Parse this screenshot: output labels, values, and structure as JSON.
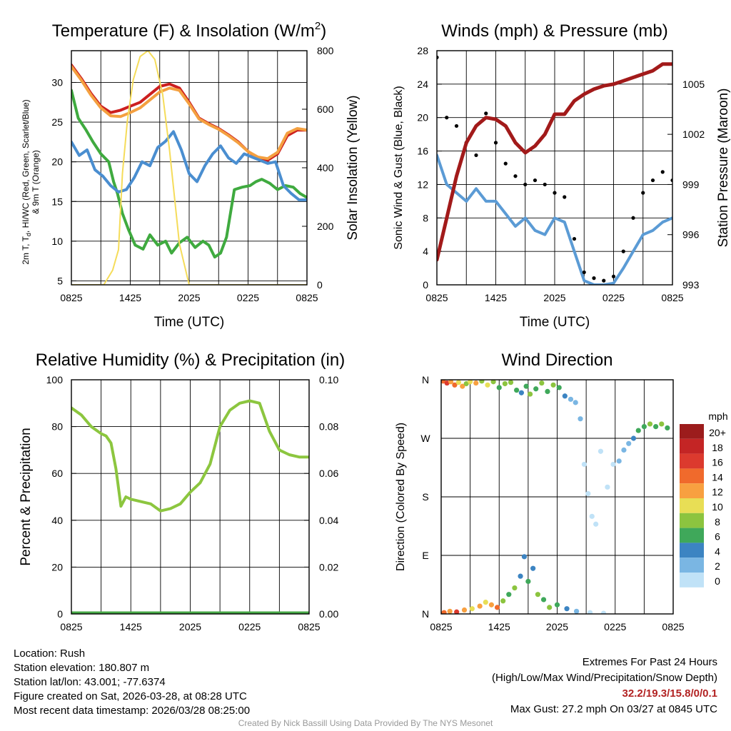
{
  "colors": {
    "temp_red": "#cc1f1f",
    "temp_orange": "#f4a040",
    "temp_green": "#3faa3f",
    "temp_blue": "#4a8ed0",
    "insolation_yellow": "#f5dc5a",
    "wind_blue": "#5b9bd5",
    "gust_black": "#000000",
    "pressure_maroon": "#a21a1a",
    "rh_green": "#8cc63f",
    "precip_green": "#46a846"
  },
  "chart_data": [
    {
      "id": "temperature",
      "type": "line",
      "title": "Temperature (F) & Insolation (W/m",
      "title_sup": "2",
      "title_end": ")",
      "xlabel": "Time (UTC)",
      "ylabel_line1": "2m T, T",
      "ylabel_sub": "d",
      "ylabel_line1_end": ", HI/WC (Red, Green, Scarlet/Blue)",
      "ylabel_line2": "& 9m T (Orange)",
      "y2label": "Solar Insolation (Yellow)",
      "x_ticks": [
        "0825",
        "1425",
        "2025",
        "0225",
        "0825"
      ],
      "xlim": [
        0,
        24
      ],
      "ylim": [
        4.5,
        34
      ],
      "yticks": [
        5,
        10,
        15,
        20,
        25,
        30
      ],
      "y2lim": [
        0,
        800
      ],
      "y2ticks": [
        0,
        200,
        400,
        600,
        800
      ],
      "series": [
        {
          "name": "2m T (Red)",
          "axis": "left",
          "color": "temp_red",
          "x": [
            0,
            1,
            2,
            3,
            4,
            5,
            6,
            7,
            8,
            9,
            10,
            11,
            12,
            13,
            14,
            15,
            16,
            17,
            18,
            19,
            20,
            21,
            22,
            23,
            24
          ],
          "values": [
            32.2,
            30.5,
            28.6,
            27,
            26.2,
            26.5,
            27,
            27.5,
            28.5,
            29.5,
            29.8,
            29.3,
            27.5,
            25.5,
            24.8,
            24.2,
            23.4,
            22.5,
            21.3,
            20.5,
            20.2,
            21,
            23.3,
            24,
            24
          ]
        },
        {
          "name": "9m T (Orange)",
          "axis": "left",
          "color": "temp_orange",
          "x": [
            0,
            1,
            2,
            3,
            4,
            5,
            6,
            7,
            8,
            9,
            10,
            11,
            12,
            13,
            14,
            15,
            16,
            17,
            18,
            19,
            20,
            21,
            22,
            23,
            24
          ],
          "values": [
            32,
            30.3,
            28.4,
            26.8,
            25.8,
            25.7,
            26.2,
            26.8,
            27.8,
            28.8,
            29.3,
            29,
            27.3,
            25.4,
            24.7,
            24.1,
            23.3,
            22.4,
            21.3,
            20.6,
            20.4,
            21.2,
            23.6,
            24.2,
            24
          ]
        },
        {
          "name": "Td (Green)",
          "axis": "left",
          "color": "temp_green",
          "x": [
            0,
            0.7,
            1.5,
            2.2,
            3,
            3.8,
            4.3,
            4.7,
            5.2,
            5.8,
            6.5,
            7.3,
            8,
            8.8,
            9.6,
            10.2,
            11,
            11.8,
            12.6,
            13.4,
            14,
            14.6,
            15.2,
            15.8,
            16.6,
            17.4,
            18.2,
            18.8,
            19.4,
            20.2,
            21,
            21.8,
            22.6,
            23.3,
            24
          ],
          "values": [
            29,
            25.5,
            24,
            22.5,
            21,
            20,
            17.5,
            16,
            13.5,
            11.5,
            9.5,
            9,
            10.8,
            9.5,
            10,
            8.5,
            9.8,
            10.5,
            9.2,
            10,
            9.5,
            8,
            8.5,
            10.5,
            16.5,
            16.8,
            17,
            17.5,
            17.8,
            17.3,
            16.5,
            17,
            16.8,
            16,
            15.5
          ]
        },
        {
          "name": "HI/WC (Blue)",
          "axis": "left",
          "color": "temp_blue",
          "x": [
            0,
            0.8,
            1.6,
            2.4,
            3.2,
            4,
            4.8,
            5.6,
            6.4,
            7.2,
            8,
            8.8,
            9.6,
            10.4,
            11.2,
            12,
            12.8,
            13.6,
            14.4,
            15.2,
            16,
            16.8,
            17.6,
            18.4,
            19.2,
            20,
            20.8,
            21.6,
            22.4,
            23.2,
            24
          ],
          "values": [
            22.5,
            20.8,
            21.5,
            19,
            18.2,
            17,
            16.2,
            16.5,
            18,
            20,
            19.5,
            21.8,
            22.6,
            23.8,
            21.5,
            18.5,
            17.5,
            19.5,
            21,
            22,
            20.5,
            19.8,
            21,
            20.6,
            20.2,
            19.8,
            20,
            17,
            16,
            15.2,
            15.2
          ]
        },
        {
          "name": "Solar Insolation (Yellow)",
          "axis": "right",
          "color": "insolation_yellow",
          "x": [
            0,
            3.3,
            4.2,
            4.8,
            5.2,
            5.7,
            6.3,
            7,
            7.8,
            8.5,
            9.3,
            10,
            11,
            12,
            13,
            14,
            15,
            16,
            17,
            18,
            19,
            20,
            21,
            22,
            23,
            24
          ],
          "values": [
            0,
            0,
            50,
            120,
            380,
            560,
            700,
            780,
            800,
            770,
            650,
            460,
            140,
            0,
            0,
            0,
            0,
            0,
            0,
            0,
            0,
            0,
            0,
            0,
            0,
            0
          ]
        }
      ]
    },
    {
      "id": "winds",
      "type": "line",
      "title": "Winds (mph) & Pressure (mb)",
      "xlabel": "Time (UTC)",
      "ylabel": "Sonic Wind & Gust (Blue, Black)",
      "y2label": "Station Pressure (Maroon)",
      "x_ticks": [
        "0825",
        "1425",
        "2025",
        "0225",
        "0825"
      ],
      "xlim": [
        0,
        24
      ],
      "ylim": [
        0,
        28
      ],
      "yticks": [
        0,
        4,
        8,
        12,
        16,
        20,
        24,
        28
      ],
      "y2lim": [
        993,
        1007
      ],
      "y2ticks": [
        993,
        996,
        999,
        1002,
        1005
      ],
      "series": [
        {
          "name": "Sonic Wind (Blue)",
          "axis": "left",
          "color": "wind_blue",
          "x": [
            0,
            1,
            2,
            3,
            4,
            5,
            6,
            7,
            8,
            9,
            10,
            11,
            12,
            13,
            14,
            15,
            16,
            17,
            18,
            19,
            20,
            21,
            22,
            23,
            24
          ],
          "values": [
            15.5,
            12,
            11,
            10,
            11.5,
            10,
            10,
            8.5,
            7,
            8,
            6.5,
            6,
            8,
            7.5,
            4,
            0.5,
            0,
            0,
            0.2,
            2,
            4,
            6,
            6.5,
            7.5,
            8
          ]
        },
        {
          "name": "Gust (Black)",
          "axis": "left",
          "color": "gust_black",
          "style": "points",
          "x": [
            0,
            1,
            2,
            3,
            4,
            5,
            6,
            7,
            8,
            9,
            10,
            11,
            12,
            13,
            14,
            15,
            16,
            17,
            18,
            19,
            20,
            21,
            22,
            23,
            24
          ],
          "values": [
            27.2,
            20,
            19,
            17,
            15.5,
            20.5,
            17,
            14.5,
            13,
            12,
            12.5,
            12,
            11,
            10.5,
            5.5,
            1.5,
            0.8,
            0.5,
            1,
            4,
            8,
            11,
            12.5,
            13.5,
            12.5
          ]
        },
        {
          "name": "Station Pressure (Maroon)",
          "axis": "right",
          "color": "pressure_maroon",
          "x": [
            0,
            1,
            2,
            3,
            4,
            5,
            6,
            7,
            8,
            9,
            10,
            11,
            12,
            13,
            14,
            15,
            16,
            17,
            18,
            19,
            20,
            21,
            22,
            23,
            24
          ],
          "values": [
            994.5,
            997,
            999.5,
            1001.5,
            1002.5,
            1003,
            1002.9,
            1002.5,
            1001.5,
            1000.9,
            1001.3,
            1002,
            1003.2,
            1003.2,
            1004,
            1004.4,
            1004.7,
            1004.9,
            1005,
            1005.2,
            1005.4,
            1005.6,
            1005.8,
            1006.2,
            1006.2
          ]
        }
      ]
    },
    {
      "id": "humidity",
      "type": "line",
      "title": "Relative Humidity (%) & Precipitation (in)",
      "ylabel": "Percent & Precipitation",
      "x_ticks": [
        "0825",
        "1425",
        "2025",
        "0225",
        "0825"
      ],
      "xlim": [
        0,
        24
      ],
      "ylim": [
        0,
        100
      ],
      "yticks": [
        0,
        20,
        40,
        60,
        80,
        100
      ],
      "y2lim": [
        0,
        0.1
      ],
      "y2ticks": [
        "0.00",
        "0.02",
        "0.04",
        "0.06",
        "0.08",
        "0.10"
      ],
      "series": [
        {
          "name": "Relative Humidity",
          "axis": "left",
          "color": "rh_green",
          "x": [
            0,
            1,
            2,
            3,
            3.5,
            4,
            4.5,
            5,
            5.5,
            6,
            7,
            8,
            9,
            10,
            11,
            12,
            13,
            14,
            15,
            16,
            17,
            18,
            19,
            20,
            21,
            22,
            23,
            24
          ],
          "values": [
            88,
            85,
            80,
            77,
            76,
            73,
            62,
            46,
            50,
            49,
            48,
            47,
            44,
            45,
            47,
            52,
            56,
            64,
            80,
            87,
            90,
            91,
            90,
            78,
            70,
            68,
            67,
            67
          ]
        },
        {
          "name": "Precipitation",
          "axis": "right",
          "color": "precip_green",
          "x": [
            0,
            24
          ],
          "values": [
            0,
            0
          ]
        }
      ]
    },
    {
      "id": "direction",
      "type": "scatter",
      "title": "Wind Direction",
      "ylabel": "Direction (Colored By Speed)",
      "x_ticks": [
        "0825",
        "1425",
        "2025",
        "0225",
        "0825"
      ],
      "xlim": [
        0,
        24
      ],
      "ylim": [
        0,
        360
      ],
      "y_tick_labels": [
        "N",
        "E",
        "S",
        "W",
        "N"
      ],
      "legend_title": "mph",
      "legend_labels": [
        "20+",
        "18",
        "16",
        "14",
        "12",
        "10",
        "8",
        "6",
        "4",
        "2",
        "0"
      ],
      "legend_colors": [
        "#9c1c1c",
        "#c42525",
        "#dc3a2e",
        "#f06a2c",
        "#f8a040",
        "#e8de55",
        "#8cc43f",
        "#3fa85a",
        "#3c84c2",
        "#7ab6e3",
        "#c0e2f7"
      ],
      "points": [
        {
          "x": 0.2,
          "dir": 358,
          "spd": 14
        },
        {
          "x": 0.6,
          "dir": 355,
          "spd": 16
        },
        {
          "x": 1.0,
          "dir": 357,
          "spd": 12
        },
        {
          "x": 1.4,
          "dir": 352,
          "spd": 14
        },
        {
          "x": 1.8,
          "dir": 356,
          "spd": 10
        },
        {
          "x": 2.2,
          "dir": 350,
          "spd": 12
        },
        {
          "x": 2.6,
          "dir": 354,
          "spd": 8
        },
        {
          "x": 3.0,
          "dir": 357,
          "spd": 10
        },
        {
          "x": 3.6,
          "dir": 355,
          "spd": 12
        },
        {
          "x": 4.2,
          "dir": 358,
          "spd": 8
        },
        {
          "x": 4.8,
          "dir": 352,
          "spd": 10
        },
        {
          "x": 5.4,
          "dir": 357,
          "spd": 8
        },
        {
          "x": 6.0,
          "dir": 348,
          "spd": 6
        },
        {
          "x": 6.6,
          "dir": 354,
          "spd": 8
        },
        {
          "x": 7.2,
          "dir": 356,
          "spd": 8
        },
        {
          "x": 7.8,
          "dir": 344,
          "spd": 6
        },
        {
          "x": 8.3,
          "dir": 340,
          "spd": 4
        },
        {
          "x": 8.8,
          "dir": 350,
          "spd": 6
        },
        {
          "x": 9.2,
          "dir": 338,
          "spd": 8
        },
        {
          "x": 9.8,
          "dir": 346,
          "spd": 6
        },
        {
          "x": 10.4,
          "dir": 355,
          "spd": 8
        },
        {
          "x": 11.0,
          "dir": 342,
          "spd": 6
        },
        {
          "x": 11.6,
          "dir": 352,
          "spd": 8
        },
        {
          "x": 12.2,
          "dir": 348,
          "spd": 6
        },
        {
          "x": 12.8,
          "dir": 335,
          "spd": 4
        },
        {
          "x": 13.4,
          "dir": 330,
          "spd": 2
        },
        {
          "x": 13.9,
          "dir": 325,
          "spd": 2
        },
        {
          "x": 14.4,
          "dir": 300,
          "spd": 2
        },
        {
          "x": 14.8,
          "dir": 230,
          "spd": 0
        },
        {
          "x": 15.2,
          "dir": 185,
          "spd": 0
        },
        {
          "x": 15.6,
          "dir": 150,
          "spd": 0
        },
        {
          "x": 16.0,
          "dir": 138,
          "spd": 0
        },
        {
          "x": 16.5,
          "dir": 250,
          "spd": 0
        },
        {
          "x": 17.2,
          "dir": 195,
          "spd": 0
        },
        {
          "x": 17.8,
          "dir": 230,
          "spd": 0
        },
        {
          "x": 18.4,
          "dir": 235,
          "spd": 2
        },
        {
          "x": 18.9,
          "dir": 252,
          "spd": 2
        },
        {
          "x": 19.4,
          "dir": 262,
          "spd": 2
        },
        {
          "x": 19.9,
          "dir": 270,
          "spd": 4
        },
        {
          "x": 20.4,
          "dir": 282,
          "spd": 6
        },
        {
          "x": 21.0,
          "dir": 288,
          "spd": 6
        },
        {
          "x": 21.6,
          "dir": 292,
          "spd": 8
        },
        {
          "x": 22.2,
          "dir": 288,
          "spd": 6
        },
        {
          "x": 22.8,
          "dir": 292,
          "spd": 8
        },
        {
          "x": 23.4,
          "dir": 286,
          "spd": 6
        },
        {
          "x": 0.3,
          "dir": 2,
          "spd": 14
        },
        {
          "x": 0.9,
          "dir": 4,
          "spd": 12
        },
        {
          "x": 1.6,
          "dir": 3,
          "spd": 16
        },
        {
          "x": 2.4,
          "dir": 6,
          "spd": 12
        },
        {
          "x": 3.2,
          "dir": 8,
          "spd": 10
        },
        {
          "x": 4.0,
          "dir": 12,
          "spd": 12
        },
        {
          "x": 4.6,
          "dir": 18,
          "spd": 10
        },
        {
          "x": 5.2,
          "dir": 14,
          "spd": 12
        },
        {
          "x": 5.8,
          "dir": 10,
          "spd": 14
        },
        {
          "x": 6.4,
          "dir": 20,
          "spd": 8
        },
        {
          "x": 7.0,
          "dir": 30,
          "spd": 6
        },
        {
          "x": 7.6,
          "dir": 40,
          "spd": 8
        },
        {
          "x": 8.2,
          "dir": 58,
          "spd": 4
        },
        {
          "x": 8.6,
          "dir": 88,
          "spd": 4
        },
        {
          "x": 9.0,
          "dir": 50,
          "spd": 6
        },
        {
          "x": 9.5,
          "dir": 70,
          "spd": 4
        },
        {
          "x": 10.0,
          "dir": 30,
          "spd": 8
        },
        {
          "x": 10.6,
          "dir": 22,
          "spd": 6
        },
        {
          "x": 11.2,
          "dir": 10,
          "spd": 8
        },
        {
          "x": 12.0,
          "dir": 14,
          "spd": 6
        },
        {
          "x": 13.0,
          "dir": 8,
          "spd": 4
        },
        {
          "x": 14.0,
          "dir": 4,
          "spd": 2
        },
        {
          "x": 15.4,
          "dir": 2,
          "spd": 0
        },
        {
          "x": 16.8,
          "dir": 1,
          "spd": 0
        }
      ]
    }
  ],
  "info": {
    "location": "Location: Rush",
    "elevation": "Station elevation: 180.807 m",
    "latlon": "Station lat/lon: 43.001; -77.6374",
    "created": "Figure created on Sat, 2026-03-28, at 08:28 UTC",
    "recent": "Most recent data timestamp: 2026/03/28 08:25:00"
  },
  "extremes": {
    "title": "Extremes For Past 24 Hours",
    "subtitle": "(High/Low/Max Wind/Precipitation/Snow Depth)",
    "values": "32.2/19.3/15.8/0/0.1",
    "max_gust": "Max Gust: 27.2 mph On 03/27 at 0845 UTC"
  },
  "credit": "Created By Nick Bassill Using Data Provided By The NYS Mesonet"
}
